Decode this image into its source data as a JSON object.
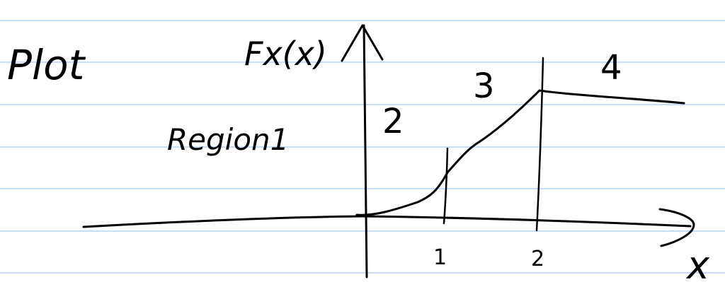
{
  "page": {
    "title": "Plot",
    "axis_y_label": "Fx(x)",
    "axis_x_label": "x",
    "region_label": "Region1",
    "regions": [
      "2",
      "3",
      "4"
    ],
    "ticks": [
      "1",
      "2"
    ]
  },
  "colors": {
    "paper": "#ffffff",
    "rule_line": "#b7d3f2",
    "ink": "#000000"
  }
}
